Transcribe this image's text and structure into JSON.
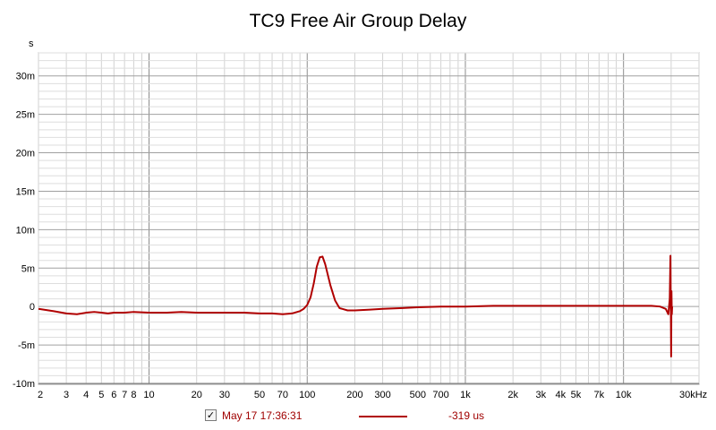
{
  "chart_data": {
    "type": "line",
    "title": "TC9 Free Air Group Delay",
    "xlabel": "",
    "ylabel": "",
    "y_unit_label": "s",
    "x_scale": "log",
    "xlim": [
      2,
      30000
    ],
    "ylim": [
      -0.01,
      0.033
    ],
    "grid": true,
    "x_ticks": [
      2,
      3,
      4,
      5,
      6,
      7,
      8,
      10,
      20,
      30,
      50,
      70,
      100,
      200,
      300,
      500,
      700,
      1000,
      2000,
      3000,
      4000,
      5000,
      7000,
      10000,
      30000
    ],
    "x_tick_labels": [
      "2",
      "3",
      "4",
      "5",
      "6",
      "7",
      "8",
      "10",
      "20",
      "30",
      "50",
      "70",
      "100",
      "200",
      "300",
      "500",
      "700",
      "1k",
      "2k",
      "3k",
      "4k",
      "5k",
      "7k",
      "10k",
      "30kHz"
    ],
    "y_ticks": [
      0.03,
      0.025,
      0.02,
      0.015,
      0.01,
      0.005,
      0,
      -0.005,
      -0.01
    ],
    "y_tick_labels": [
      "30m",
      "25m",
      "20m",
      "15m",
      "10m",
      "5m",
      "0",
      "-5m",
      "-10m"
    ],
    "series": [
      {
        "name": "May 17 17:36:31",
        "color": "#b00000",
        "x": [
          2,
          2.5,
          3,
          3.5,
          4,
          4.5,
          5,
          5.5,
          6,
          7,
          8,
          10,
          13,
          16,
          20,
          25,
          30,
          40,
          50,
          60,
          70,
          80,
          90,
          95,
          100,
          105,
          110,
          115,
          120,
          125,
          130,
          140,
          150,
          160,
          180,
          200,
          250,
          300,
          400,
          500,
          700,
          1000,
          1500,
          2000,
          3000,
          5000,
          7000,
          10000,
          15000,
          17000,
          18500,
          19200,
          19600,
          19800,
          20000,
          20100,
          20200,
          20300
        ],
        "y": [
          -0.0003,
          -0.0006,
          -0.0009,
          -0.001,
          -0.0008,
          -0.0007,
          -0.0008,
          -0.0009,
          -0.0008,
          -0.0008,
          -0.0007,
          -0.0008,
          -0.0008,
          -0.0007,
          -0.0008,
          -0.0008,
          -0.0008,
          -0.0008,
          -0.0009,
          -0.0009,
          -0.001,
          -0.0009,
          -0.0006,
          -0.0003,
          0.0002,
          0.0012,
          0.003,
          0.0052,
          0.0064,
          0.0065,
          0.0055,
          0.0028,
          0.0008,
          -0.0002,
          -0.0005,
          -0.0005,
          -0.0004,
          -0.0003,
          -0.0002,
          -0.0001,
          0.0,
          0.0,
          0.0001,
          0.0001,
          0.0001,
          0.0001,
          0.0001,
          0.0001,
          0.0001,
          0.0,
          -0.0003,
          -0.001,
          0.001,
          0.0066,
          -0.0065,
          0.002,
          -0.001,
          0.0
        ]
      }
    ],
    "legend": {
      "checked": true,
      "label": "May 17 17:36:31",
      "value": "-319 us",
      "placement": "bottom"
    }
  }
}
